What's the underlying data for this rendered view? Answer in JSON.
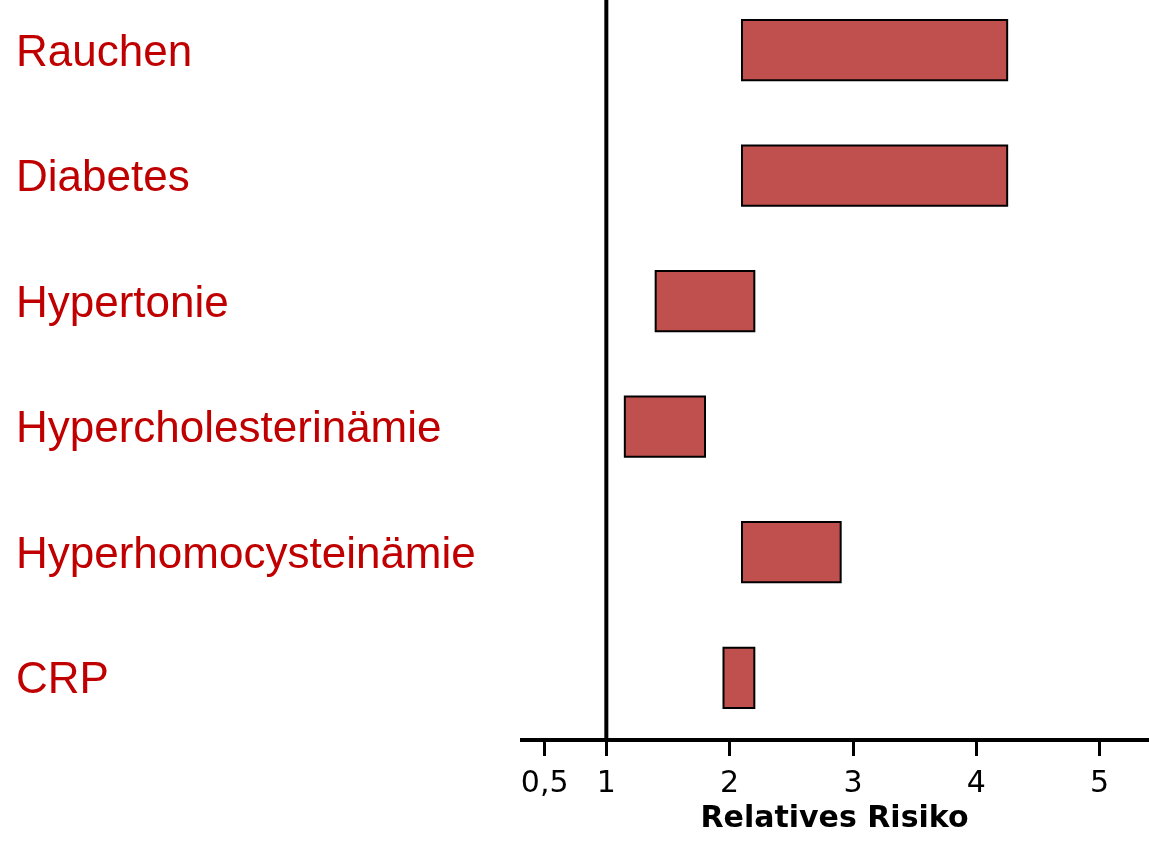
{
  "chart_data": {
    "type": "bar",
    "orientation": "horizontal",
    "xlabel": "Relatives Risiko",
    "categories": [
      "Rauchen",
      "Diabetes",
      "Hypertonie",
      "Hypercholesterinämie",
      "Hyperhomocysteinämie",
      "CRP"
    ],
    "base": [
      2.1,
      2.1,
      1.4,
      1.15,
      2.1,
      1.95
    ],
    "values": [
      2.15,
      2.15,
      0.8,
      0.65,
      0.8,
      0.25
    ],
    "color": "#c0504d",
    "xlim": [
      0.3,
      5.4
    ],
    "xticks": [
      {
        "value": 0.5,
        "label": "0,5"
      },
      {
        "value": 1,
        "label": "1"
      },
      2,
      3,
      4,
      5
    ],
    "ref_lines": [
      {
        "axis": "x",
        "value": 1,
        "color": "#000000"
      }
    ],
    "grid": false
  }
}
